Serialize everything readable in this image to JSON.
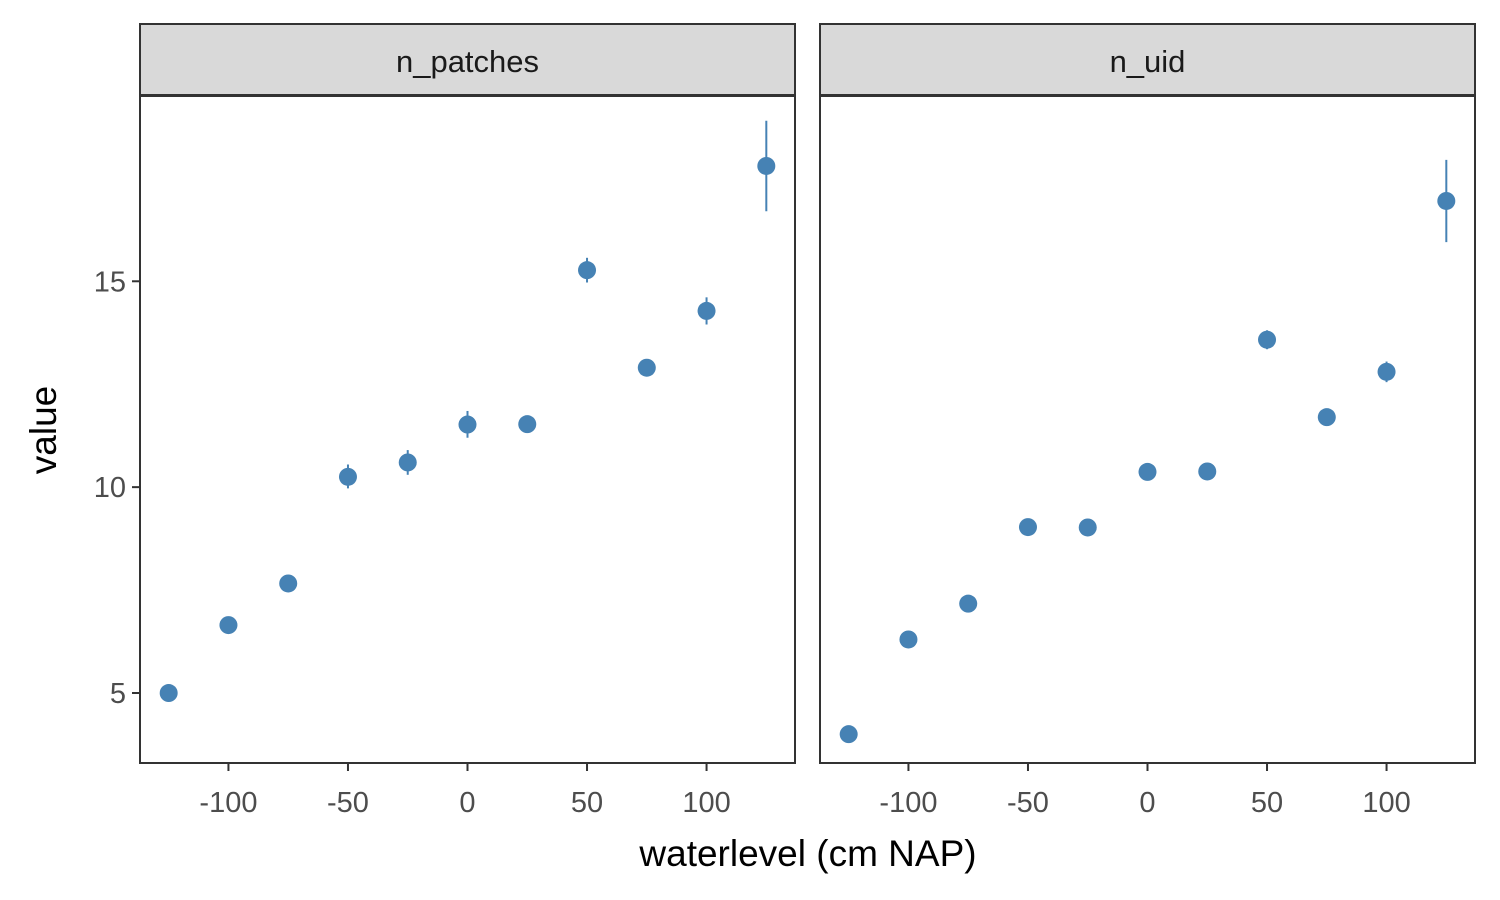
{
  "chart_data": {
    "type": "scatter",
    "xlabel": "waterlevel (cm NAP)",
    "ylabel": "value",
    "x_ticks": [
      -100,
      -50,
      0,
      50,
      100
    ],
    "y_ticks": [
      5,
      10,
      15
    ],
    "xlim": [
      -137,
      137
    ],
    "ylim": [
      3.3,
      19.5
    ],
    "point_color": "#4682b4",
    "grid": false,
    "legend": "none",
    "facets": [
      {
        "name": "n_patches",
        "x": [
          -125,
          -100,
          -75,
          -50,
          -25,
          0,
          25,
          50,
          75,
          100,
          125
        ],
        "y": [
          5.0,
          6.65,
          7.66,
          10.25,
          10.6,
          11.52,
          11.53,
          15.27,
          12.9,
          14.28,
          17.8
        ],
        "err_low": [
          5.0,
          6.65,
          7.66,
          9.97,
          10.3,
          11.2,
          11.33,
          14.97,
          12.9,
          13.95,
          16.7
        ],
        "err_high": [
          5.0,
          6.65,
          7.66,
          10.55,
          10.9,
          11.85,
          11.73,
          15.57,
          12.9,
          14.61,
          18.9
        ]
      },
      {
        "name": "n_uid",
        "x": [
          -125,
          -100,
          -75,
          -50,
          -25,
          0,
          25,
          50,
          75,
          100,
          125
        ],
        "y": [
          4.0,
          6.3,
          7.17,
          9.03,
          9.02,
          10.37,
          10.38,
          13.58,
          11.7,
          12.8,
          16.95
        ],
        "err_low": [
          4.0,
          6.3,
          7.17,
          9.03,
          9.02,
          10.25,
          10.38,
          13.35,
          11.7,
          12.55,
          15.95
        ],
        "err_high": [
          4.0,
          6.3,
          7.17,
          9.03,
          9.02,
          10.49,
          10.38,
          13.81,
          11.7,
          13.05,
          17.95
        ]
      }
    ]
  }
}
